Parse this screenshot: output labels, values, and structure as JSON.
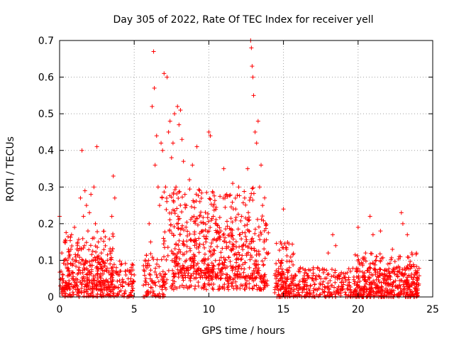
{
  "chart_data": {
    "type": "scatter",
    "title": "Day 305 of 2022, Rate Of TEC Index for receiver yell",
    "xlabel": "GPS time / hours",
    "ylabel": "ROTI / TECUs",
    "xlim": [
      0,
      25
    ],
    "ylim": [
      0,
      0.7
    ],
    "xticks": [
      0,
      5,
      10,
      15,
      20,
      25
    ],
    "xtick_labels": [
      "0",
      "5",
      "10",
      "15",
      "20",
      "25"
    ],
    "yticks": [
      0,
      0.1,
      0.2,
      0.3,
      0.4,
      0.5,
      0.6,
      0.7
    ],
    "ytick_labels": [
      "0",
      "0.1",
      "0.2",
      "0.3",
      "0.4",
      "0.5",
      "0.6",
      "0.7"
    ],
    "grid": true,
    "marker": "plus",
    "color": "#ff0000",
    "series": [
      {
        "points": [
          [
            0.0,
            0.22
          ],
          [
            0.05,
            0.03
          ],
          [
            0.1,
            0.07
          ],
          [
            0.15,
            0.12
          ],
          [
            0.2,
            0.05
          ],
          [
            0.3,
            0.1
          ],
          [
            0.35,
            0.15
          ],
          [
            0.4,
            0.04
          ],
          [
            0.5,
            0.08
          ],
          [
            0.6,
            0.13
          ],
          [
            0.7,
            0.06
          ],
          [
            0.8,
            0.17
          ],
          [
            0.9,
            0.09
          ],
          [
            1.0,
            0.19
          ],
          [
            1.1,
            0.05
          ],
          [
            1.2,
            0.14
          ],
          [
            1.3,
            0.08
          ],
          [
            1.4,
            0.27
          ],
          [
            1.5,
            0.4
          ],
          [
            1.6,
            0.22
          ],
          [
            1.7,
            0.29
          ],
          [
            1.8,
            0.25
          ],
          [
            1.9,
            0.18
          ],
          [
            2.0,
            0.23
          ],
          [
            2.1,
            0.28
          ],
          [
            2.2,
            0.16
          ],
          [
            2.3,
            0.3
          ],
          [
            2.4,
            0.2
          ],
          [
            2.5,
            0.41
          ],
          [
            2.6,
            0.15
          ],
          [
            2.7,
            0.09
          ],
          [
            2.8,
            0.12
          ],
          [
            3.0,
            0.07
          ],
          [
            3.2,
            0.1
          ],
          [
            3.4,
            0.05
          ],
          [
            3.5,
            0.22
          ],
          [
            3.6,
            0.33
          ],
          [
            3.7,
            0.27
          ],
          [
            3.8,
            0.08
          ],
          [
            4.0,
            0.06
          ],
          [
            4.2,
            0.04
          ],
          [
            4.4,
            0.07
          ],
          [
            4.6,
            0.05
          ],
          [
            4.8,
            0.08
          ],
          [
            5.0,
            0.06
          ],
          [
            5.8,
            0.04
          ],
          [
            6.0,
            0.2
          ],
          [
            6.1,
            0.15
          ],
          [
            6.2,
            0.52
          ],
          [
            6.3,
            0.67
          ],
          [
            6.35,
            0.57
          ],
          [
            6.4,
            0.36
          ],
          [
            6.5,
            0.44
          ],
          [
            6.6,
            0.3
          ],
          [
            6.7,
            0.25
          ],
          [
            6.8,
            0.42
          ],
          [
            6.9,
            0.4
          ],
          [
            7.0,
            0.61
          ],
          [
            7.1,
            0.3
          ],
          [
            7.2,
            0.6
          ],
          [
            7.3,
            0.45
          ],
          [
            7.4,
            0.48
          ],
          [
            7.5,
            0.38
          ],
          [
            7.6,
            0.42
          ],
          [
            7.7,
            0.5
          ],
          [
            7.8,
            0.3
          ],
          [
            7.9,
            0.52
          ],
          [
            8.0,
            0.47
          ],
          [
            8.1,
            0.51
          ],
          [
            8.2,
            0.43
          ],
          [
            8.3,
            0.37
          ],
          [
            8.4,
            0.28
          ],
          [
            8.5,
            0.25
          ],
          [
            8.7,
            0.32
          ],
          [
            8.9,
            0.36
          ],
          [
            9.0,
            0.22
          ],
          [
            9.2,
            0.41
          ],
          [
            9.4,
            0.26
          ],
          [
            9.6,
            0.18
          ],
          [
            9.8,
            0.15
          ],
          [
            10.0,
            0.45
          ],
          [
            10.1,
            0.44
          ],
          [
            10.3,
            0.22
          ],
          [
            10.5,
            0.2
          ],
          [
            10.8,
            0.18
          ],
          [
            11.0,
            0.35
          ],
          [
            11.2,
            0.28
          ],
          [
            11.4,
            0.15
          ],
          [
            11.6,
            0.31
          ],
          [
            11.8,
            0.24
          ],
          [
            12.0,
            0.3
          ],
          [
            12.2,
            0.22
          ],
          [
            12.4,
            0.27
          ],
          [
            12.6,
            0.35
          ],
          [
            12.8,
            0.7
          ],
          [
            12.85,
            0.68
          ],
          [
            12.9,
            0.63
          ],
          [
            12.95,
            0.6
          ],
          [
            13.0,
            0.55
          ],
          [
            13.1,
            0.45
          ],
          [
            13.2,
            0.42
          ],
          [
            13.3,
            0.48
          ],
          [
            13.4,
            0.3
          ],
          [
            13.5,
            0.36
          ],
          [
            13.6,
            0.25
          ],
          [
            13.8,
            0.2
          ],
          [
            14.0,
            0.12
          ],
          [
            14.5,
            0.05
          ],
          [
            14.8,
            0.15
          ],
          [
            15.0,
            0.24
          ],
          [
            15.2,
            0.13
          ],
          [
            15.4,
            0.08
          ],
          [
            15.6,
            0.05
          ],
          [
            16.0,
            0.07
          ],
          [
            16.5,
            0.04
          ],
          [
            17.0,
            0.08
          ],
          [
            17.5,
            0.05
          ],
          [
            18.0,
            0.12
          ],
          [
            18.3,
            0.17
          ],
          [
            18.5,
            0.14
          ],
          [
            18.7,
            0.06
          ],
          [
            19.0,
            0.04
          ],
          [
            19.5,
            0.07
          ],
          [
            20.0,
            0.19
          ],
          [
            20.3,
            0.09
          ],
          [
            20.5,
            0.12
          ],
          [
            20.8,
            0.22
          ],
          [
            21.0,
            0.17
          ],
          [
            21.2,
            0.1
          ],
          [
            21.5,
            0.18
          ],
          [
            21.8,
            0.06
          ],
          [
            22.0,
            0.09
          ],
          [
            22.3,
            0.13
          ],
          [
            22.6,
            0.08
          ],
          [
            22.9,
            0.23
          ],
          [
            23.0,
            0.2
          ],
          [
            23.3,
            0.17
          ],
          [
            23.6,
            0.12
          ],
          [
            23.8,
            0.06
          ],
          [
            24.0,
            0.05
          ]
        ],
        "bands": [
          {
            "x0": 0.0,
            "x1": 5.0,
            "y0": 0.0,
            "y1": 0.1
          },
          {
            "x0": 0.3,
            "x1": 3.6,
            "y0": 0.02,
            "y1": 0.18
          },
          {
            "x0": 5.6,
            "x1": 7.0,
            "y0": 0.0,
            "y1": 0.12
          },
          {
            "x0": 6.8,
            "x1": 14.0,
            "y0": 0.02,
            "y1": 0.3
          },
          {
            "x0": 7.5,
            "x1": 13.8,
            "y0": 0.05,
            "y1": 0.22
          },
          {
            "x0": 14.4,
            "x1": 24.1,
            "y0": 0.0,
            "y1": 0.08
          },
          {
            "x0": 14.5,
            "x1": 15.8,
            "y0": 0.0,
            "y1": 0.15
          },
          {
            "x0": 19.8,
            "x1": 24.0,
            "y0": 0.0,
            "y1": 0.12
          }
        ]
      }
    ]
  }
}
